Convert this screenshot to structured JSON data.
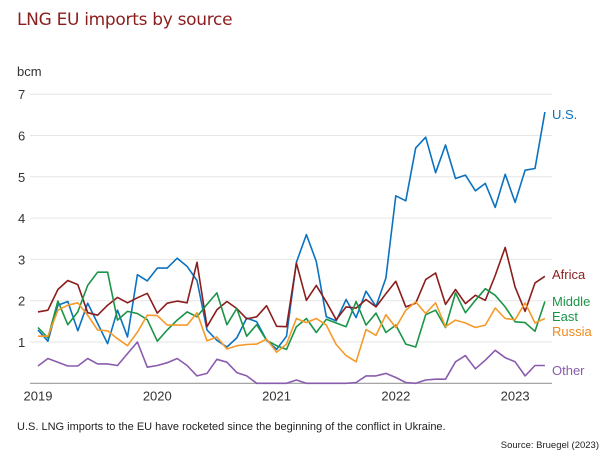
{
  "chart_data": {
    "type": "line",
    "title": "LNG EU imports by source",
    "ylabel": "bcm",
    "x_start": "2019-01",
    "x_frequency": "monthly",
    "x_ticks": [
      "2019",
      "2020",
      "2021",
      "2022",
      "2023"
    ],
    "y_ticks": [
      1,
      2,
      3,
      4,
      5,
      6,
      7
    ],
    "ylim": [
      0,
      7
    ],
    "grid": true,
    "legend": "inline labels at right end of lines",
    "series": [
      {
        "name": "U.S.",
        "color": "#0b72c0",
        "values": [
          1.29,
          1.02,
          1.89,
          1.98,
          1.27,
          1.94,
          1.45,
          0.96,
          1.77,
          1.12,
          2.63,
          2.48,
          2.79,
          2.79,
          3.03,
          2.83,
          2.49,
          1.29,
          1.04,
          0.88,
          1.1,
          1.58,
          1.49,
          1.04,
          0.82,
          1.14,
          2.93,
          3.6,
          2.95,
          1.61,
          1.51,
          2.03,
          1.59,
          2.23,
          1.86,
          2.55,
          4.54,
          4.42,
          5.7,
          5.96,
          5.1,
          5.77,
          4.96,
          5.04,
          4.66,
          4.84,
          4.26,
          5.06,
          4.38,
          5.16,
          5.2,
          6.57
        ]
      },
      {
        "name": "Africa",
        "color": "#8b1d1d",
        "values": [
          1.73,
          1.77,
          2.27,
          2.49,
          2.39,
          1.71,
          1.65,
          1.89,
          2.08,
          1.95,
          2.07,
          2.18,
          1.7,
          1.94,
          1.99,
          1.95,
          2.93,
          1.37,
          1.78,
          1.98,
          1.81,
          1.56,
          1.61,
          1.88,
          1.38,
          1.37,
          2.91,
          2.01,
          2.37,
          1.97,
          1.54,
          1.85,
          1.82,
          2.03,
          1.85,
          2.17,
          2.47,
          1.85,
          1.94,
          2.51,
          2.67,
          1.91,
          2.27,
          1.93,
          2.13,
          2.01,
          2.61,
          3.29,
          2.33,
          1.74,
          2.43,
          2.59
        ]
      },
      {
        "name": "Middle East",
        "color": "#1a9547",
        "values": [
          1.35,
          1.1,
          1.99,
          1.42,
          1.73,
          2.37,
          2.69,
          2.69,
          1.53,
          1.74,
          1.69,
          1.54,
          1.02,
          1.29,
          1.53,
          1.73,
          1.61,
          1.91,
          2.19,
          1.42,
          1.81,
          1.14,
          1.42,
          1.04,
          0.91,
          0.82,
          1.37,
          1.57,
          1.23,
          1.55,
          1.46,
          1.37,
          1.98,
          1.41,
          1.7,
          1.23,
          1.41,
          0.95,
          0.88,
          1.66,
          1.77,
          1.35,
          2.19,
          1.71,
          2.01,
          2.29,
          2.13,
          1.85,
          1.49,
          1.47,
          1.26,
          1.98
        ]
      },
      {
        "name": "Russia",
        "color": "#f59a2a",
        "values": [
          1.14,
          1.14,
          1.77,
          1.89,
          1.95,
          1.65,
          1.29,
          1.27,
          1.08,
          0.91,
          1.24,
          1.65,
          1.64,
          1.41,
          1.41,
          1.41,
          1.71,
          1.03,
          1.12,
          0.83,
          0.91,
          0.94,
          0.95,
          1.07,
          0.75,
          0.95,
          1.57,
          1.47,
          1.57,
          1.41,
          0.94,
          0.67,
          0.52,
          1.3,
          1.16,
          1.66,
          1.35,
          1.77,
          1.97,
          1.69,
          1.95,
          1.37,
          1.53,
          1.46,
          1.35,
          1.41,
          1.82,
          1.57,
          1.54,
          1.95,
          1.46,
          1.57
        ]
      },
      {
        "name": "Other",
        "color": "#8a5cae",
        "values": [
          0.42,
          0.6,
          0.51,
          0.42,
          0.42,
          0.6,
          0.47,
          0.47,
          0.43,
          0.72,
          1.0,
          0.39,
          0.43,
          0.5,
          0.6,
          0.43,
          0.18,
          0.24,
          0.58,
          0.51,
          0.26,
          0.18,
          0.0,
          0.0,
          0.0,
          0.0,
          0.08,
          0.0,
          0.0,
          0.0,
          0.0,
          0.0,
          0.02,
          0.18,
          0.18,
          0.24,
          0.14,
          0.02,
          0.0,
          0.08,
          0.1,
          0.1,
          0.52,
          0.67,
          0.35,
          0.56,
          0.8,
          0.62,
          0.52,
          0.18,
          0.43,
          0.43
        ]
      }
    ]
  },
  "labels": {
    "us": "U.S.",
    "africa": "Africa",
    "middle_east": "Middle East",
    "russia": "Russia",
    "other": "Other"
  },
  "caption": "U.S. LNG imports to the EU have rocketed since the beginning of the conflict in Ukraine.",
  "source": "Source: Bruegel (2023)"
}
